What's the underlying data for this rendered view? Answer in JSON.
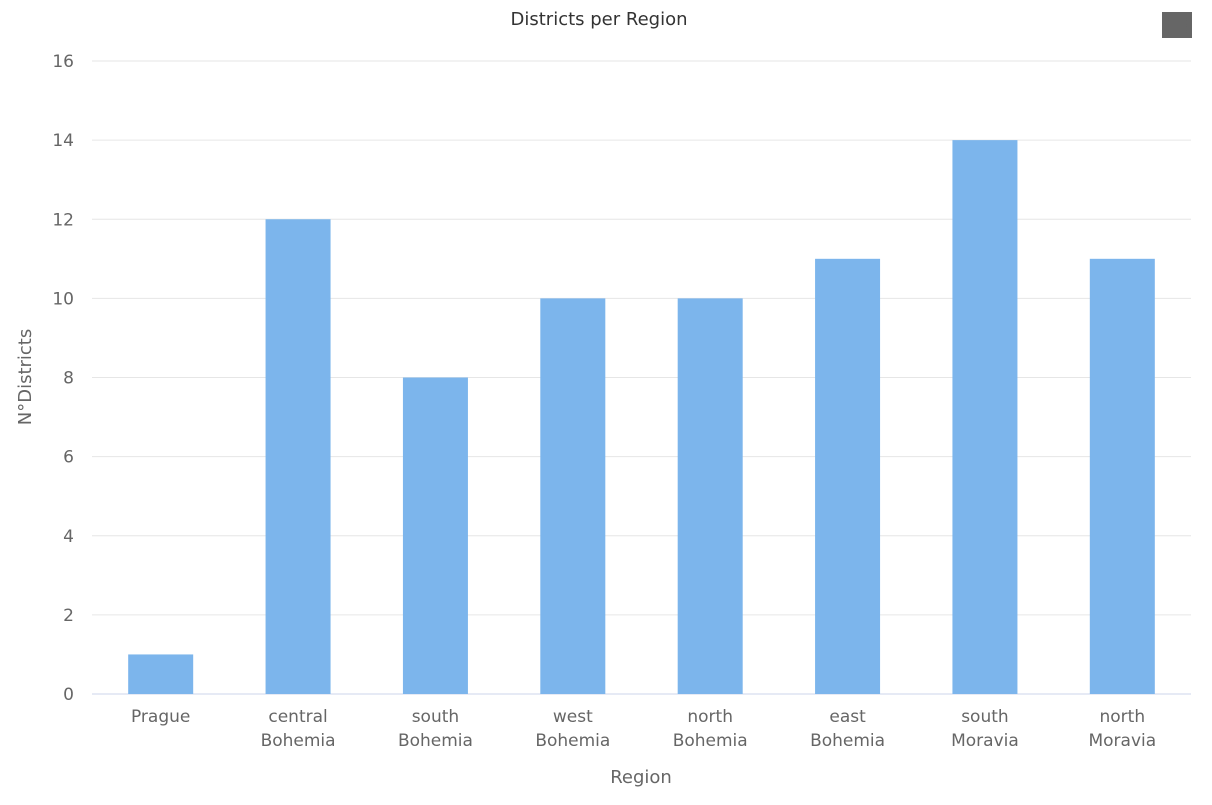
{
  "chart_data": {
    "type": "bar",
    "title": "Districts per Region",
    "xlabel": "Region",
    "ylabel": "N°Districts",
    "categories": [
      [
        "Prague"
      ],
      [
        "central",
        "Bohemia"
      ],
      [
        "south",
        "Bohemia"
      ],
      [
        "west",
        "Bohemia"
      ],
      [
        "north",
        "Bohemia"
      ],
      [
        "east",
        "Bohemia"
      ],
      [
        "south",
        "Moravia"
      ],
      [
        "north",
        "Moravia"
      ]
    ],
    "values": [
      1,
      12,
      8,
      10,
      10,
      11,
      14,
      11
    ],
    "ylim": [
      0,
      16
    ],
    "yticks": [
      0,
      2,
      4,
      6,
      8,
      10,
      12,
      14,
      16
    ],
    "grid": true,
    "legend": "none",
    "bar_color": "#7cb5ec"
  },
  "menu": {
    "icon": "hamburger-menu-icon"
  }
}
